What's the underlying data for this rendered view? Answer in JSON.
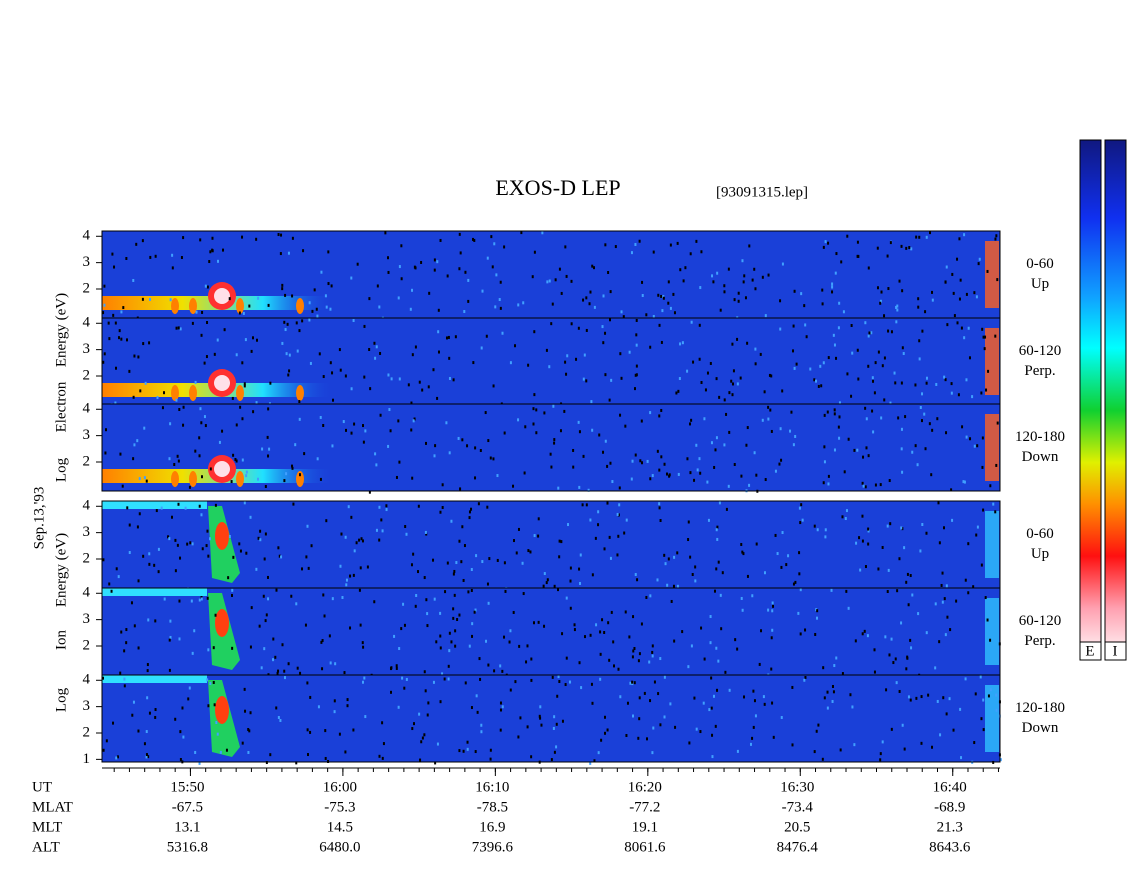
{
  "title": "EXOS-D LEP",
  "file": "[93091315.lep]",
  "date_label": "Sep.13,'93",
  "electron_axis_label": [
    "Log",
    "Electron",
    "Energy (eV)"
  ],
  "ion_axis_label": [
    "Log",
    "Ion",
    "Energy (eV)"
  ],
  "ylim": [
    0.9,
    4.2
  ],
  "panels": [
    {
      "pitch": "0-60",
      "direction": "Up",
      "yticks": [
        2,
        3,
        4
      ]
    },
    {
      "pitch": "60-120",
      "direction": "Perp.",
      "yticks": [
        2,
        3,
        4
      ]
    },
    {
      "pitch": "120-180",
      "direction": "Down",
      "yticks": [
        2,
        3,
        4
      ]
    },
    {
      "pitch": "0-60",
      "direction": "Up",
      "yticks": [
        2,
        3,
        4
      ]
    },
    {
      "pitch": "60-120",
      "direction": "Perp.",
      "yticks": [
        2,
        3,
        4
      ]
    },
    {
      "pitch": "120-180",
      "direction": "Down",
      "yticks": [
        1,
        2,
        3,
        4
      ]
    }
  ],
  "xlim": [
    44.2,
    103.1
  ],
  "xticks": [
    {
      "value": 50,
      "label": "15:50"
    },
    {
      "value": 60,
      "label": "16:00"
    },
    {
      "value": 70,
      "label": "16:10"
    },
    {
      "value": 80,
      "label": "16:20"
    },
    {
      "value": 90,
      "label": "16:30"
    },
    {
      "value": 100,
      "label": "16:40"
    }
  ],
  "ephemeris": [
    {
      "name": "UT",
      "values": []
    },
    {
      "name": "MLAT",
      "values": [
        "-67.5",
        "-75.3",
        "-78.5",
        "-77.2",
        "-73.4",
        "-68.9"
      ]
    },
    {
      "name": "MLT",
      "values": [
        "13.1",
        "14.5",
        "16.9",
        "19.1",
        "20.5",
        "21.3"
      ]
    },
    {
      "name": "ALT",
      "values": [
        "5316.8",
        "6480.0",
        "7396.6",
        "8061.6",
        "8476.4",
        "8643.6"
      ]
    }
  ],
  "colorbars": [
    "E",
    "I"
  ]
}
